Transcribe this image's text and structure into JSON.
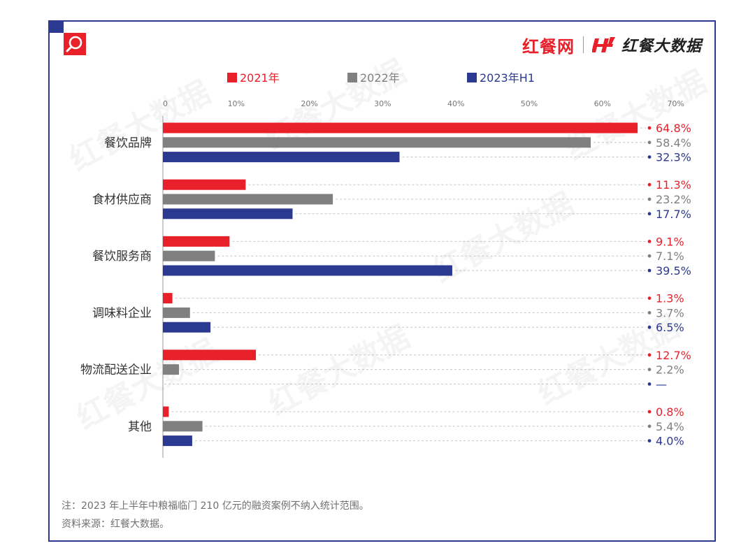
{
  "brand": {
    "site": "红餐网",
    "data_label": "红餐大数据",
    "watermark": "红餐大数据"
  },
  "colors": {
    "frame": "#2b3990",
    "2021": "#e8202a",
    "2022": "#808080",
    "2023H1": "#2b3990"
  },
  "icons": {
    "corner": "magnifier-icon",
    "brand_logo": "h-brand-icon"
  },
  "chart_data": {
    "type": "bar",
    "orientation": "horizontal",
    "categories": [
      "餐饮品牌",
      "食材供应商",
      "餐饮服务商",
      "调味料企业",
      "物流配送企业",
      "其他"
    ],
    "series": [
      {
        "name": "2021年",
        "color": "#e8202a",
        "values": [
          64.8,
          11.3,
          9.1,
          1.3,
          12.7,
          0.8
        ],
        "labels": [
          "64.8%",
          "11.3%",
          "9.1%",
          "1.3%",
          "12.7%",
          "0.8%"
        ]
      },
      {
        "name": "2022年",
        "color": "#808080",
        "values": [
          58.4,
          23.2,
          7.1,
          3.7,
          2.2,
          5.4
        ],
        "labels": [
          "58.4%",
          "23.2%",
          "7.1%",
          "3.7%",
          "2.2%",
          "5.4%"
        ]
      },
      {
        "name": "2023年H1",
        "color": "#2b3990",
        "values": [
          32.3,
          17.7,
          39.5,
          6.5,
          null,
          4.0
        ],
        "labels": [
          "32.3%",
          "17.7%",
          "39.5%",
          "6.5%",
          "—",
          "4.0%"
        ]
      }
    ],
    "xticks": [
      "0",
      "10%",
      "20%",
      "30%",
      "40%",
      "50%",
      "60%",
      "70%"
    ],
    "xlim": [
      0,
      70
    ],
    "legend_position": "top",
    "axis_position": "top",
    "grid": "dashed horizontal guides to value labels"
  },
  "notes": {
    "note1": "注：2023 年上半年中粮福临门 210 亿元的融资案例不纳入统计范围。",
    "note2": "资料来源：红餐大数据。"
  }
}
